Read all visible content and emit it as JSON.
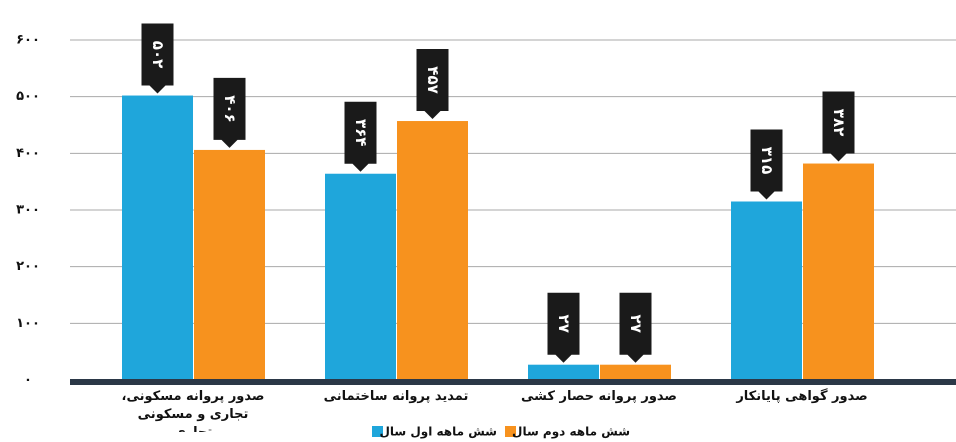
{
  "chart_data": {
    "type": "bar",
    "categories": [
      "صدور پروانه مسکونی، تجاری و مسکونی تجاری",
      "تمدید پروانه ساختمانی",
      "صدور پروانه حصار کشی",
      "صدور گواهی پایانکار"
    ],
    "series": [
      {
        "name": "شش ماهه اول سال",
        "color": "#1fa6db",
        "values": [
          502,
          364,
          27,
          315
        ],
        "value_labels": [
          "۵۰۲",
          "۳۶۴",
          "۲۷",
          "۳۱۵"
        ]
      },
      {
        "name": "شش ماهه دوم سال",
        "color": "#f7921e",
        "values": [
          406,
          457,
          27,
          382
        ],
        "value_labels": [
          "۴۰۶",
          "۴۵۷",
          "۲۷",
          "۳۸۲"
        ]
      }
    ],
    "ylim": [
      0,
      600
    ],
    "yticks": [
      {
        "value": 0,
        "label": "۰"
      },
      {
        "value": 100,
        "label": "۱۰۰"
      },
      {
        "value": 200,
        "label": "۲۰۰"
      },
      {
        "value": 300,
        "label": "۳۰۰"
      },
      {
        "value": 400,
        "label": "۴۰۰"
      },
      {
        "value": 500,
        "label": "۵۰۰"
      },
      {
        "value": 600,
        "label": "۶۰۰"
      }
    ],
    "grid": true
  }
}
